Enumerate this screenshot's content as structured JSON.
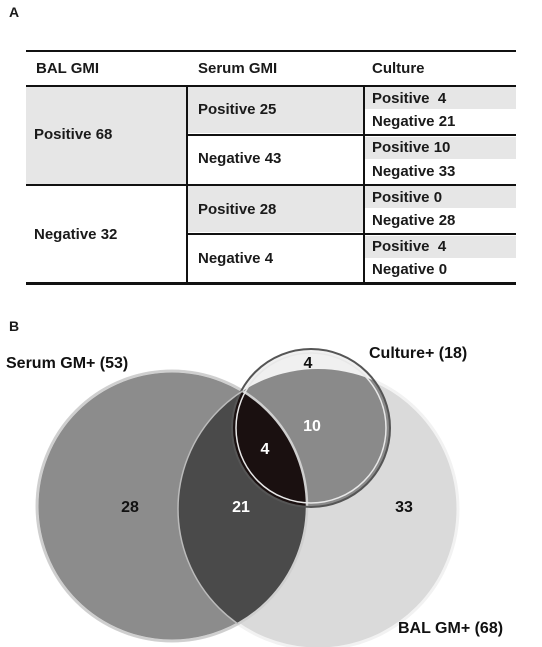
{
  "panel_a": {
    "label": "A",
    "headers": [
      "BAL GMI",
      "Serum GMI",
      "Culture"
    ],
    "bal": [
      {
        "label": "Positive 68",
        "serum": [
          {
            "label": "Positive 25",
            "culture": [
              "Positive  4",
              "Negative 21"
            ]
          },
          {
            "label": "Negative 43",
            "culture": [
              "Positive 10",
              "Negative 33"
            ]
          }
        ]
      },
      {
        "label": "Negative 32",
        "serum": [
          {
            "label": "Positive 28",
            "culture": [
              "Positive 0",
              "Negative 28"
            ]
          },
          {
            "label": "Negative 4",
            "culture": [
              "Positive  4",
              "Negative 0"
            ]
          }
        ]
      }
    ]
  },
  "panel_b": {
    "label": "B",
    "sets": {
      "serum": "Serum GM+ (53)",
      "culture": "Culture+ (18)",
      "bal": "BAL GM+ (68)"
    },
    "regions": {
      "serum_only": "28",
      "serum_bal": "21",
      "all_three": "4",
      "culture_bal": "10",
      "culture_only": "4",
      "bal_only": "33"
    }
  }
}
